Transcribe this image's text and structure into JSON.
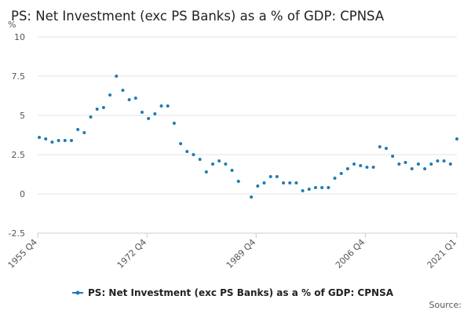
{
  "chart_data": {
    "type": "scatter",
    "title": "PS: Net Investment (exc PS Banks) as a % of GDP: CPNSA",
    "y_label": "%",
    "source": "Source:",
    "x": [
      "1956 Q1",
      "1957 Q1",
      "1958 Q1",
      "1959 Q1",
      "1960 Q1",
      "1961 Q1",
      "1962 Q1",
      "1963 Q1",
      "1964 Q1",
      "1965 Q1",
      "1966 Q1",
      "1967 Q1",
      "1968 Q1",
      "1969 Q1",
      "1970 Q1",
      "1971 Q1",
      "1972 Q1",
      "1973 Q1",
      "1974 Q1",
      "1975 Q1",
      "1976 Q1",
      "1977 Q1",
      "1978 Q1",
      "1979 Q1",
      "1980 Q1",
      "1981 Q1",
      "1982 Q1",
      "1983 Q1",
      "1984 Q1",
      "1985 Q1",
      "1986 Q1",
      "1987 Q1",
      "1988 Q1",
      "1989 Q1",
      "1990 Q1",
      "1991 Q1",
      "1992 Q1",
      "1993 Q1",
      "1994 Q1",
      "1995 Q1",
      "1996 Q1",
      "1997 Q1",
      "1998 Q1",
      "1999 Q1",
      "2000 Q1",
      "2001 Q1",
      "2002 Q1",
      "2003 Q1",
      "2004 Q1",
      "2005 Q1",
      "2006 Q1",
      "2007 Q1",
      "2008 Q1",
      "2009 Q1",
      "2010 Q1",
      "2011 Q1",
      "2012 Q1",
      "2013 Q1",
      "2014 Q1",
      "2015 Q1",
      "2016 Q1",
      "2017 Q1",
      "2018 Q1",
      "2019 Q1",
      "2020 Q1",
      "2021 Q1"
    ],
    "series": [
      {
        "name": "PS: Net Investment (exc PS Banks) as a % of GDP: CPNSA",
        "color": "#1f7ab4",
        "values": [
          3.6,
          3.5,
          3.3,
          3.4,
          3.4,
          3.4,
          4.1,
          3.9,
          4.9,
          5.4,
          5.5,
          6.3,
          7.5,
          6.6,
          6.0,
          6.1,
          5.2,
          4.8,
          5.1,
          5.6,
          5.6,
          4.5,
          3.2,
          2.7,
          2.5,
          2.2,
          1.4,
          1.9,
          2.1,
          1.9,
          1.5,
          0.8,
          null,
          -0.2,
          0.5,
          0.7,
          1.1,
          1.1,
          0.7,
          0.7,
          0.7,
          0.2,
          0.3,
          0.4,
          0.4,
          0.4,
          1.0,
          1.3,
          1.6,
          1.9,
          1.8,
          1.7,
          1.7,
          3.0,
          2.9,
          2.4,
          1.9,
          2.0,
          1.6,
          1.9,
          1.6,
          1.9,
          2.1,
          2.1,
          1.9,
          3.5
        ]
      }
    ],
    "xlim": [
      "1955 Q4",
      "2021 Q1"
    ],
    "xticks": [
      "1955 Q4",
      "1972 Q4",
      "1989 Q4",
      "2006 Q4",
      "2021 Q1"
    ],
    "ylim": [
      -2.5,
      10
    ],
    "yticks": [
      10,
      7.5,
      5,
      2.5,
      0,
      -2.5
    ],
    "grid": true
  }
}
